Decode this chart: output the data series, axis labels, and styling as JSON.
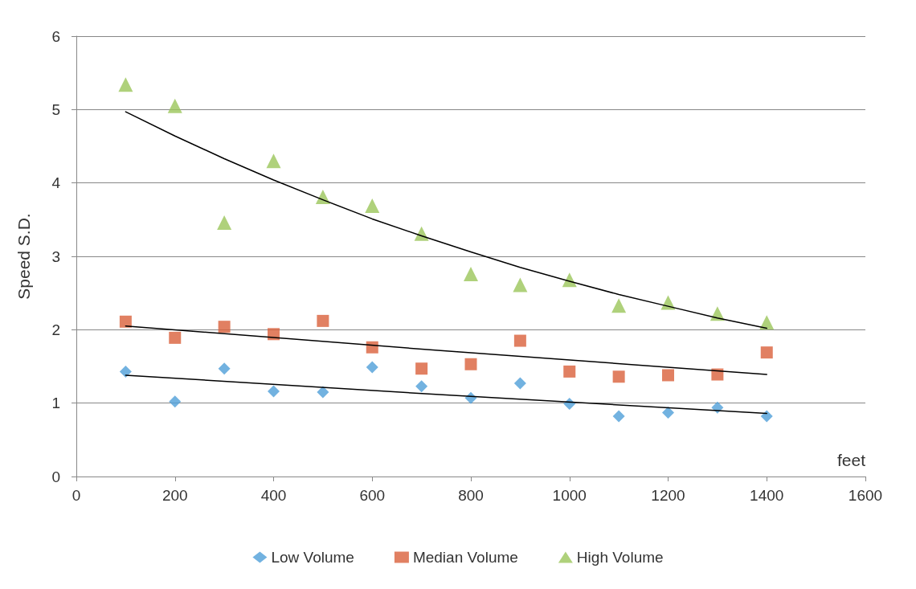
{
  "chart_data": {
    "type": "scatter",
    "xlabel": "feet",
    "ylabel": "Speed S.D.",
    "x": [
      100,
      200,
      300,
      400,
      500,
      600,
      700,
      800,
      900,
      1000,
      1100,
      1200,
      1300,
      1400
    ],
    "series": [
      {
        "name": "Low Volume",
        "color": "#4f9fd8",
        "marker": "diamond",
        "values": [
          1.43,
          1.02,
          1.47,
          1.16,
          1.15,
          1.49,
          1.23,
          1.07,
          1.27,
          0.99,
          0.82,
          0.87,
          0.94,
          0.82
        ]
      },
      {
        "name": "Median Volume",
        "color": "#d9603b",
        "marker": "square",
        "values": [
          2.11,
          1.89,
          2.04,
          1.94,
          2.12,
          1.76,
          1.47,
          1.53,
          1.85,
          1.43,
          1.36,
          1.38,
          1.39,
          1.69
        ]
      },
      {
        "name": "High Volume",
        "color": "#9bc65a",
        "marker": "triangle",
        "values": [
          5.34,
          5.05,
          3.46,
          4.3,
          3.81,
          3.69,
          3.31,
          2.76,
          2.61,
          2.68,
          2.33,
          2.37,
          2.22,
          2.1
        ]
      },
      {
        "type": "line",
        "color": "#000000",
        "marker": "none",
        "x": [
          100,
          750,
          1400
        ],
        "values": [
          1.38,
          1.11,
          0.86
        ]
      },
      {
        "type": "line",
        "color": "#000000",
        "marker": "none",
        "x": [
          100,
          750,
          1400
        ],
        "values": [
          2.05,
          1.71,
          1.39
        ]
      },
      {
        "type": "line",
        "color": "#000000",
        "marker": "none",
        "x": [
          100,
          200,
          300,
          400,
          500,
          600,
          700,
          800,
          900,
          1000,
          1100,
          1200,
          1300,
          1400
        ],
        "values": [
          4.97,
          4.64,
          4.33,
          4.04,
          3.77,
          3.51,
          3.28,
          3.06,
          2.85,
          2.66,
          2.48,
          2.32,
          2.16,
          2.02
        ]
      }
    ],
    "xlim": [
      0,
      1600
    ],
    "xticks": [
      0,
      200,
      400,
      600,
      800,
      1000,
      1200,
      1400,
      1600
    ],
    "ylim": [
      0,
      6
    ],
    "yticks": [
      0,
      1,
      2,
      3,
      4,
      5,
      6
    ],
    "grid": "y",
    "legend": "bottom"
  }
}
